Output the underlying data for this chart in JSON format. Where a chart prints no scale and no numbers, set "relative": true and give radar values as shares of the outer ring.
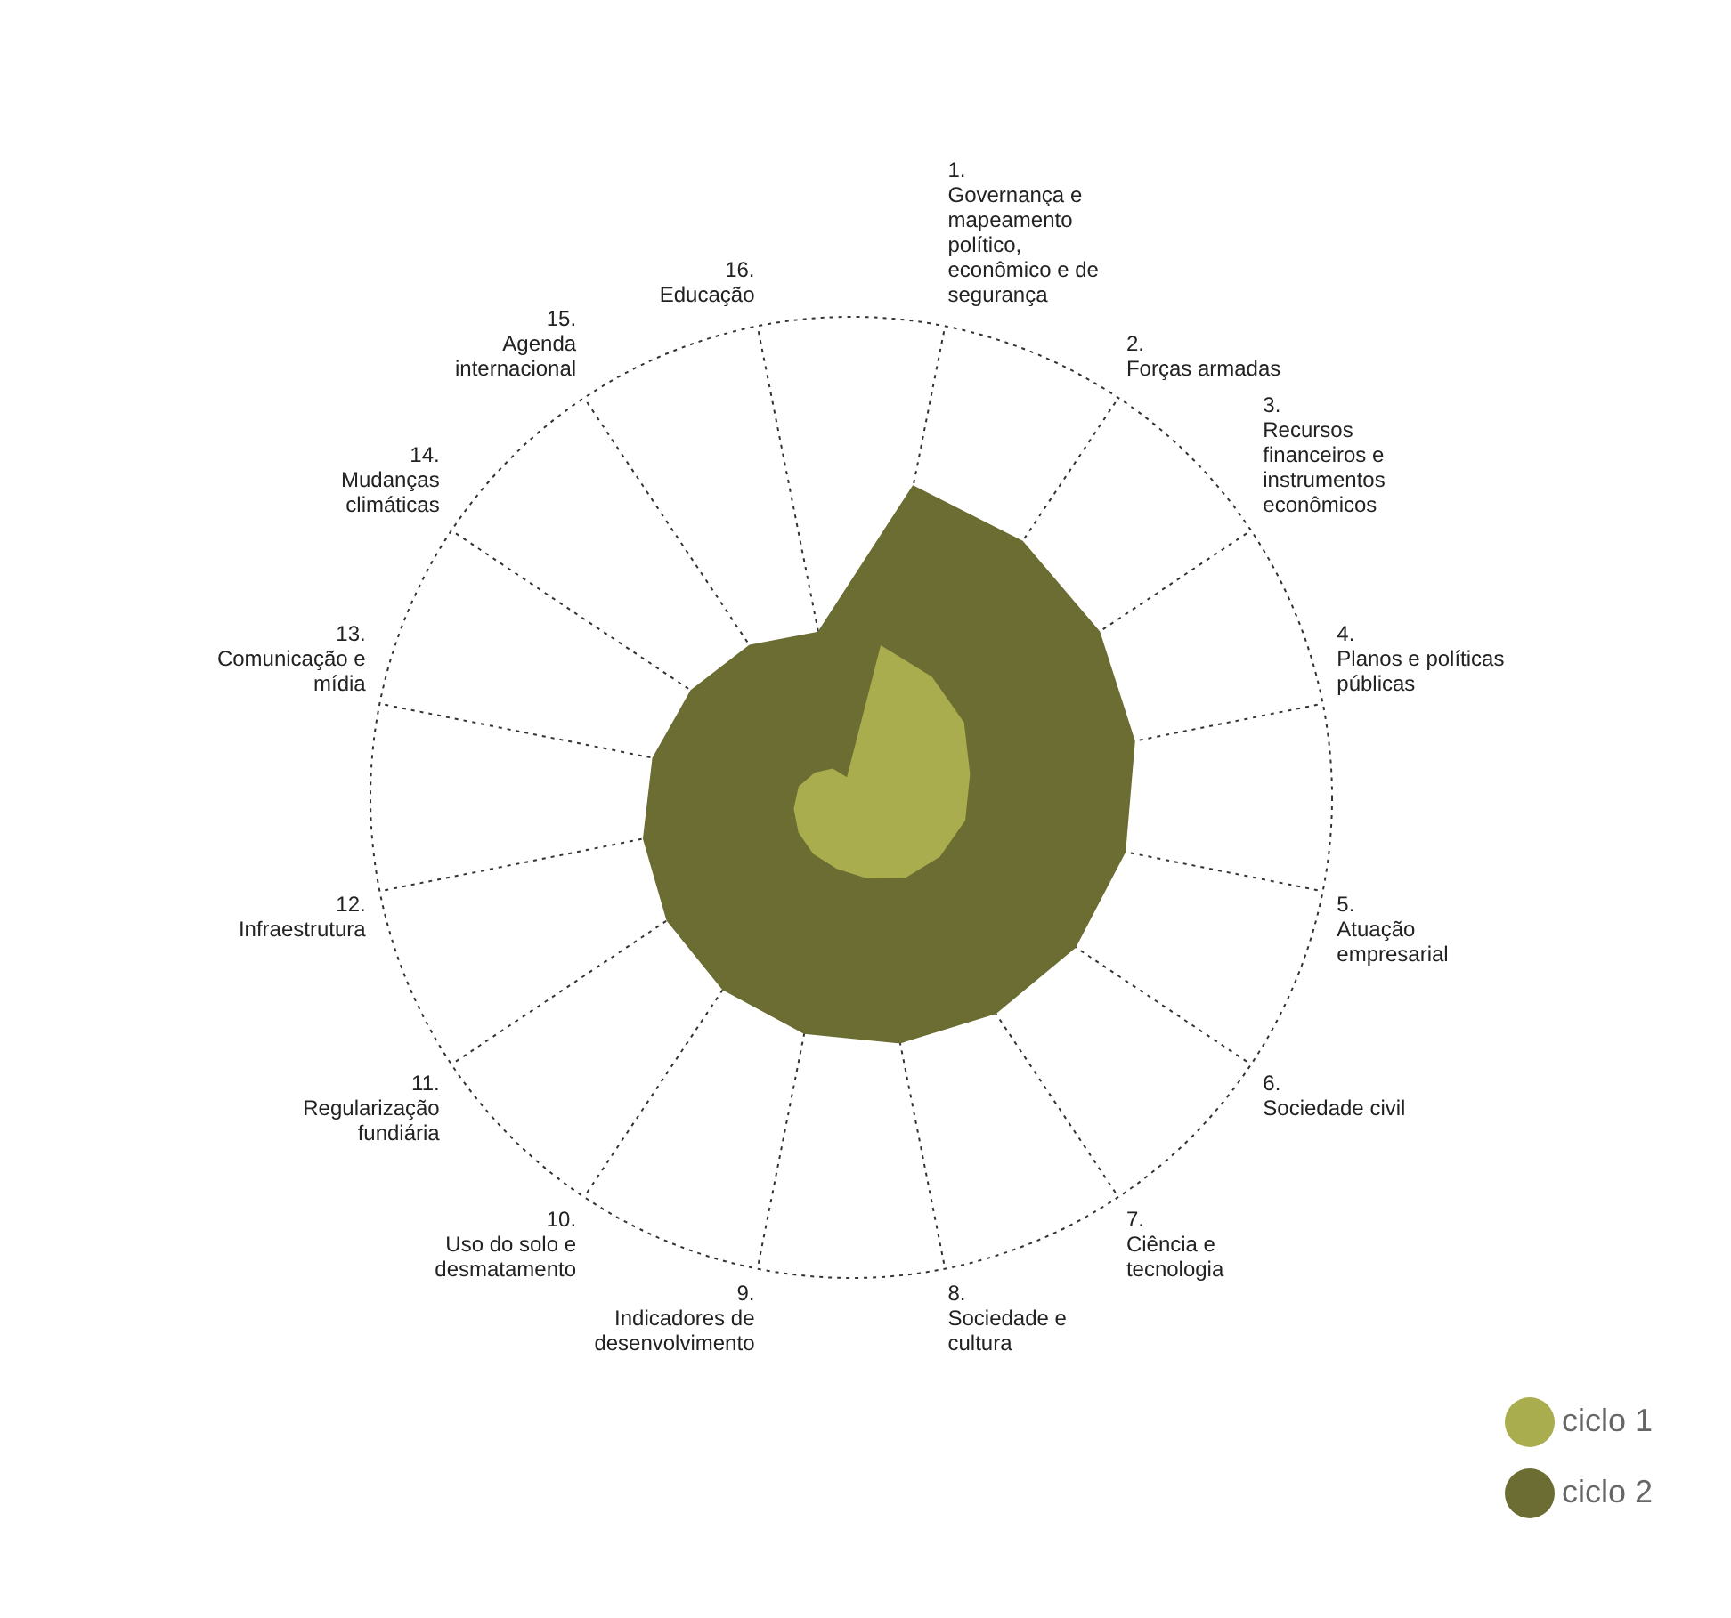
{
  "chart_data": {
    "type": "radar",
    "relative": true,
    "categories": [
      "1. Governança e mapeamento político, econômico e de segurança",
      "2. Forças armadas",
      "3. Recursos financeiros e instrumentos econômicos",
      "4. Planos e políticas públicas",
      "5. Atuação empresarial",
      "6. Sociedade civil",
      "7. Ciência e tecnologia",
      "8. Sociedade e cultura",
      "9. Indicadores de desenvolvimento",
      "10. Uso do solo e desmatamento",
      "11. Regularização fundiária",
      "12. Infraestrutura",
      "13. Comunicação e mídia",
      "14. Mudanças climáticas",
      "15. Agenda internacional",
      "16. Educação"
    ],
    "series": [
      {
        "name": "ciclo 2",
        "color": "#6b6d33",
        "values": [
          0.66,
          0.64,
          0.62,
          0.6,
          0.58,
          0.56,
          0.54,
          0.52,
          0.5,
          0.48,
          0.46,
          0.44,
          0.42,
          0.4,
          0.38,
          0.35
        ]
      },
      {
        "name": "ciclo 1",
        "color": "#a9ad4e",
        "values": [
          0.32,
          0.3,
          0.28,
          0.25,
          0.24,
          0.22,
          0.2,
          0.17,
          0.15,
          0.14,
          0.13,
          0.12,
          0.11,
          0.09,
          0.07,
          0.04
        ]
      }
    ],
    "legend": "bottom right",
    "grid": true
  }
}
